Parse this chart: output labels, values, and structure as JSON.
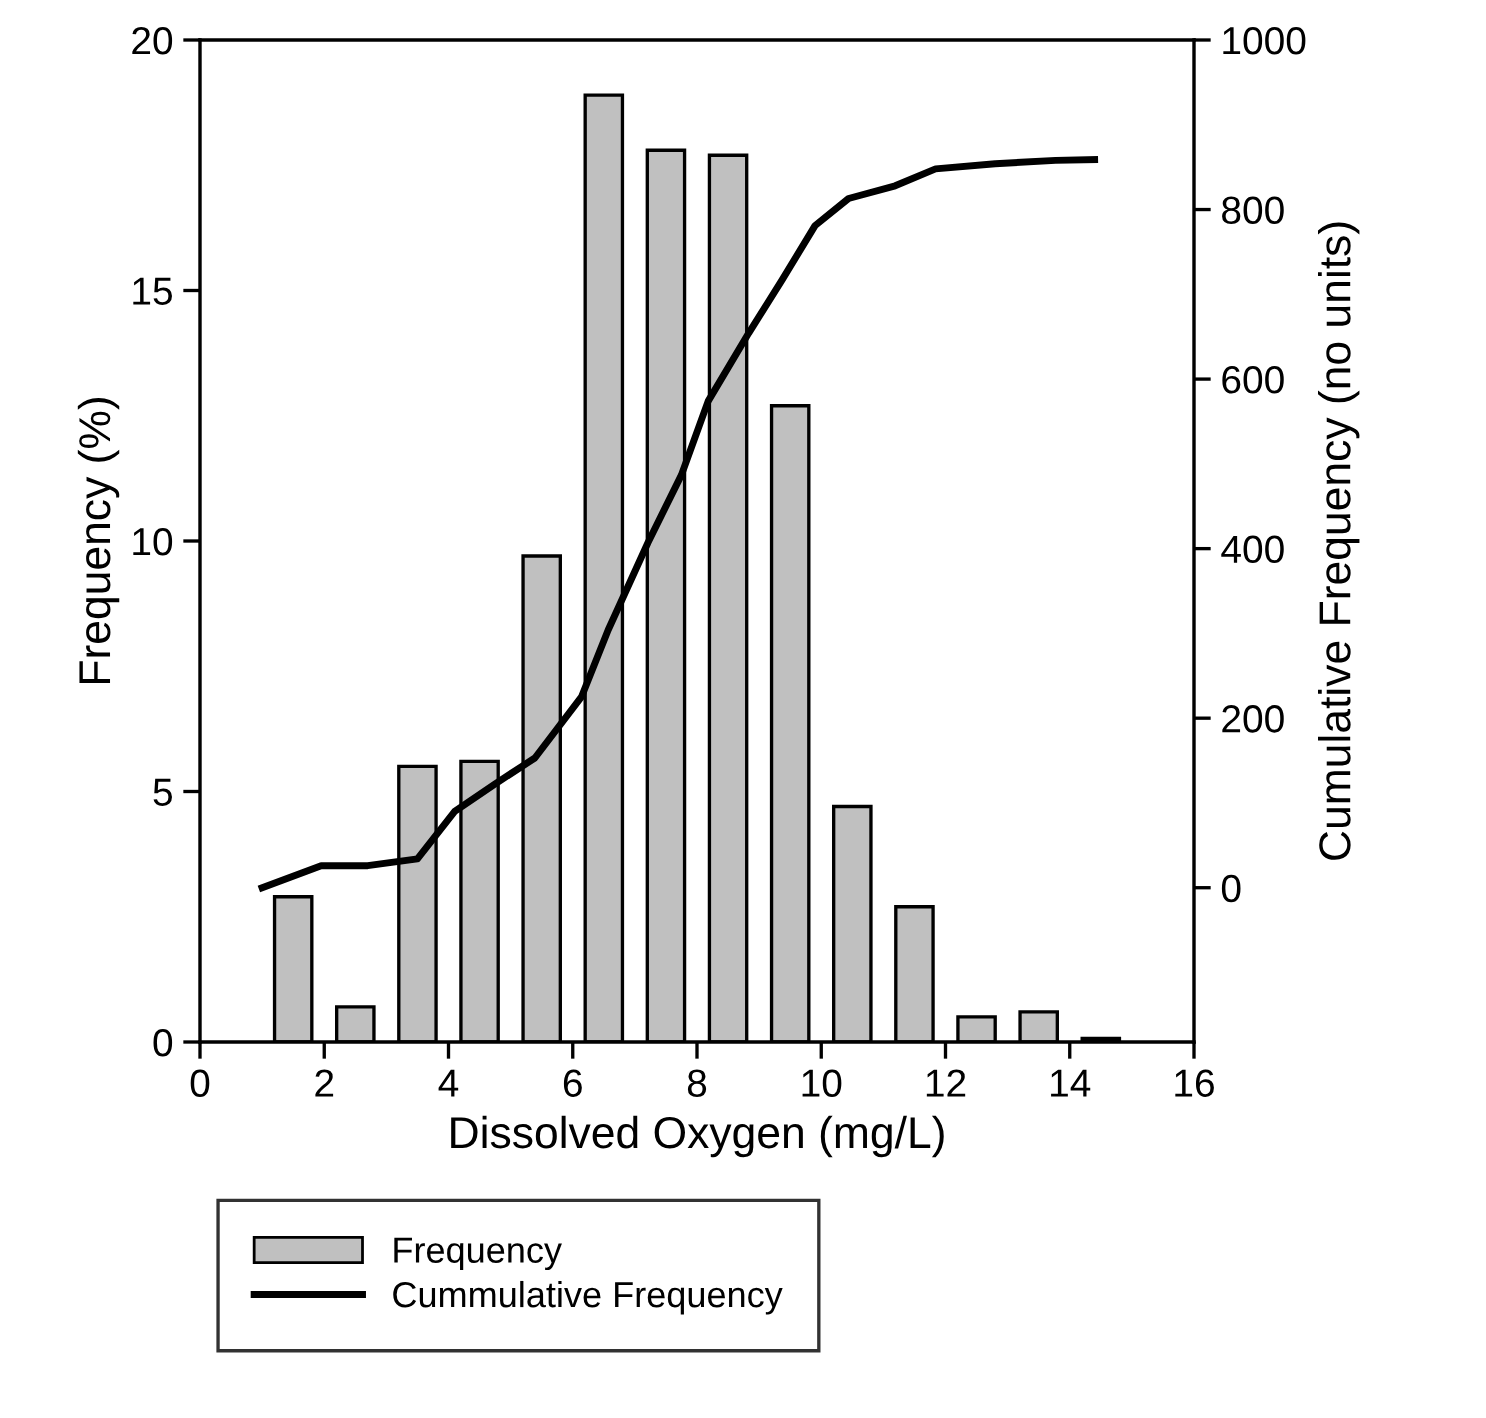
{
  "chart_data": {
    "type": "bar",
    "xlabel": "Dissolved Oxygen (mg/L)",
    "ylabel": "Frequency (%)",
    "y2label": "Cumulative Frequency (no units)",
    "xlim": [
      0,
      16
    ],
    "xticks": [
      0,
      2,
      4,
      6,
      8,
      10,
      12,
      14,
      16
    ],
    "ylim": [
      0,
      20
    ],
    "yticks": [
      0,
      5,
      10,
      15,
      20
    ],
    "y2lim": [
      -182,
      1000
    ],
    "y2ticks": [
      0,
      200,
      400,
      600,
      800,
      1000
    ],
    "grid": false,
    "legend": "bottom",
    "series": [
      {
        "name": "Frequency",
        "color": "#c0c0c0",
        "x": [
          1.5,
          2.5,
          3.5,
          4.5,
          5.5,
          6.5,
          7.5,
          8.5,
          9.5,
          10.5,
          11.5,
          12.5,
          13.5,
          14.5
        ],
        "values": [
          2.9,
          0.7,
          5.5,
          5.6,
          9.7,
          18.9,
          17.8,
          17.7,
          12.7,
          4.7,
          2.7,
          0.5,
          0.6,
          0.07
        ]
      },
      {
        "name": "Cummulative Frequency",
        "type": "line",
        "axis": "y2",
        "color": "#000000",
        "x": [
          1.0,
          1.95,
          2.7,
          3.5,
          4.1,
          4.74,
          5.39,
          6.14,
          6.57,
          7.21,
          7.75,
          8.18,
          8.83,
          9.37,
          9.9,
          10.44,
          11.19,
          11.84,
          12.8,
          13.77,
          14.4
        ],
        "values": [
          0,
          26,
          26,
          34,
          90,
          122,
          153,
          225,
          304,
          407,
          487,
          574,
          654,
          717,
          781,
          813,
          828,
          848,
          854,
          858,
          859
        ]
      }
    ]
  }
}
